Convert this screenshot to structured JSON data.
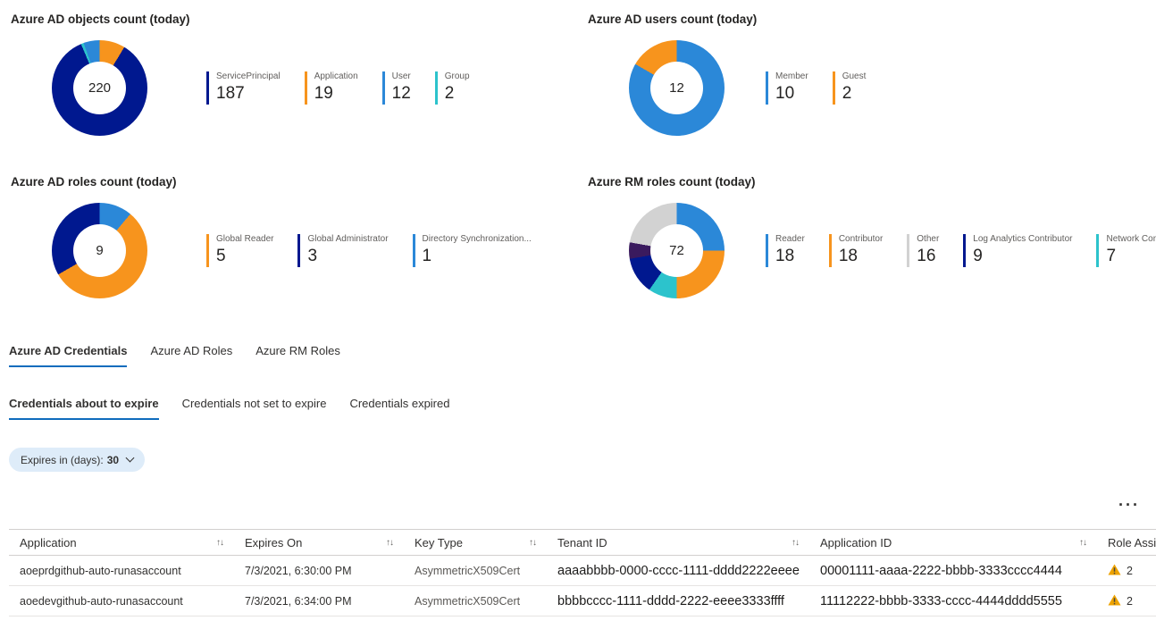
{
  "icons": {
    "sort": "↑↓",
    "more_options": "···",
    "chevron_down": "v",
    "warning": "⚠"
  },
  "chart_data": [
    {
      "type": "donut",
      "title": "Azure AD objects count (today)",
      "total": "220",
      "legend_position": "right",
      "segments": [
        {
          "label": "ServicePrincipal",
          "value": 187,
          "color": "#00188f"
        },
        {
          "label": "Application",
          "value": 19,
          "color": "#f7941d"
        },
        {
          "label": "User",
          "value": 12,
          "color": "#2b88d8"
        },
        {
          "label": "Group",
          "value": 2,
          "color": "#2cc3cc"
        }
      ],
      "arc_order": [
        1,
        0,
        3,
        2
      ]
    },
    {
      "type": "donut",
      "title": "Azure AD users count (today)",
      "total": "12",
      "legend_position": "right",
      "segments": [
        {
          "label": "Member",
          "value": 10,
          "color": "#2b88d8"
        },
        {
          "label": "Guest",
          "value": 2,
          "color": "#f7941d"
        }
      ],
      "arc_order": [
        0,
        1
      ]
    },
    {
      "type": "donut",
      "title": "Azure AD roles count (today)",
      "total": "9",
      "legend_position": "right",
      "segments": [
        {
          "label": "Global Reader",
          "value": 5,
          "color": "#f7941d"
        },
        {
          "label": "Global Administrator",
          "value": 3,
          "color": "#00188f"
        },
        {
          "label": "Directory Synchronization...",
          "value": 1,
          "color": "#2b88d8"
        }
      ],
      "arc_order": [
        2,
        0,
        1
      ]
    },
    {
      "type": "donut",
      "title": "Azure RM roles count (today)",
      "total": "72",
      "legend_position": "right",
      "segments": [
        {
          "label": "Reader",
          "value": 18,
          "color": "#2b88d8"
        },
        {
          "label": "Contributor",
          "value": 18,
          "color": "#f7941d"
        },
        {
          "label": "Other",
          "value": 16,
          "color": "#d2d2d2"
        },
        {
          "label": "Log Analytics Contributor",
          "value": 9,
          "color": "#00188f"
        },
        {
          "label": "Network Contributor",
          "value": 7,
          "color": "#2cc3cc"
        },
        {
          "label": null,
          "value": 4,
          "color": "#3a1a5e",
          "in_legend": false
        }
      ],
      "arc_order": [
        0,
        1,
        4,
        3,
        5,
        2
      ]
    }
  ],
  "tabs": {
    "items": [
      {
        "label": "Azure AD Credentials",
        "active": true
      },
      {
        "label": "Azure AD Roles",
        "active": false
      },
      {
        "label": "Azure RM Roles",
        "active": false
      }
    ]
  },
  "subtabs": {
    "items": [
      {
        "label": "Credentials about to expire",
        "active": true
      },
      {
        "label": "Credentials not set to expire",
        "active": false
      },
      {
        "label": "Credentials expired",
        "active": false
      }
    ]
  },
  "filter": {
    "label": "Expires in (days):",
    "value": "30"
  },
  "table": {
    "columns": [
      {
        "label": "Application",
        "key": "application",
        "sortable": true
      },
      {
        "label": "Expires On",
        "key": "expires_on",
        "sortable": true
      },
      {
        "label": "Key Type",
        "key": "key_type",
        "sortable": true
      },
      {
        "label": "Tenant ID",
        "key": "tenant_id",
        "sortable": true
      },
      {
        "label": "Application ID",
        "key": "application_id",
        "sortable": true
      },
      {
        "label": "Role Assignments",
        "key": "role_assignments",
        "sortable": false
      }
    ],
    "rows": [
      {
        "application": "aoeprdgithub-auto-runasaccount",
        "expires_on": "7/3/2021, 6:30:00 PM",
        "key_type": "AsymmetricX509Cert",
        "tenant_id": "aaaabbbb-0000-cccc-1111-dddd2222eeee",
        "application_id": "00001111-aaaa-2222-bbbb-3333cccc4444",
        "role_assignments": "2"
      },
      {
        "application": "aoedevgithub-auto-runasaccount",
        "expires_on": "7/3/2021, 6:34:00 PM",
        "key_type": "AsymmetricX509Cert",
        "tenant_id": "bbbbcccc-1111-dddd-2222-eeee3333ffff",
        "application_id": "11112222-bbbb-3333-cccc-4444dddd5555",
        "role_assignments": "2"
      }
    ]
  }
}
